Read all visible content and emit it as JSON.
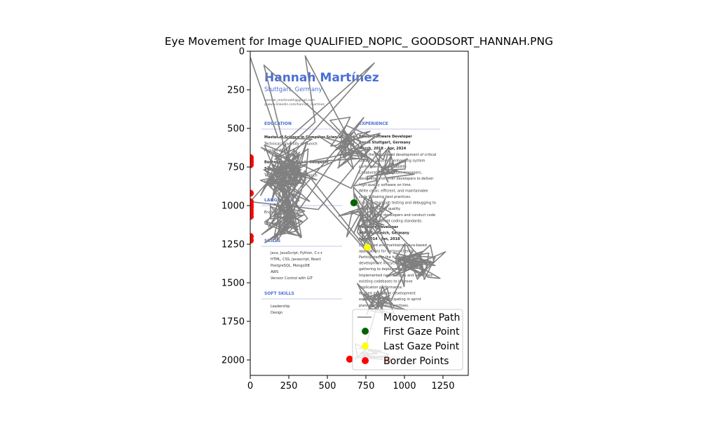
{
  "chart_data": {
    "type": "line",
    "title": "Eye Movement for Image QUALIFIED_NOPIC_ GOODSORT_HANNAH.PNG",
    "xlabel": "",
    "ylabel": "",
    "xlim": [
      0,
      1414
    ],
    "ylim": [
      2100,
      0
    ],
    "x_ticks": [
      0,
      250,
      500,
      750,
      1000,
      1250
    ],
    "y_ticks": [
      0,
      250,
      500,
      750,
      1000,
      1250,
      1500,
      1750,
      2000
    ],
    "background_image": {
      "extent_x": [
        0,
        1414
      ],
      "extent_y": [
        0,
        2000
      ],
      "name": "Hannah Martínez",
      "location": "Stuttgart, Germany",
      "email": "hannah_martinezth@gmail.com",
      "linkedin": "@www.linkedin.com/hannah_martinez",
      "sections": {
        "education": "EDUCATION",
        "experience": "EXPERIENCE",
        "languages": "LANGUAGES",
        "skills": "SKILLS",
        "soft_skills": "SOFT SKILLS"
      },
      "education_lines": [
        "Master of Science in Computer Science",
        "Technical University of Munich",
        "Munich, 2014",
        "Bachelor of Science in Computer",
        "Science",
        "Technical University of Munich",
        "Munich, 2010"
      ],
      "experience_lines": [
        "Senior Software Developer",
        "Bosch Stuttgart, Germany",
        "March, 2018 - Apr, 2024",
        "Lead the design and development of critical",
        "software solutions, enhancing system",
        "performance and reliability.",
        "Collaborate with product managers,",
        "designers, and other developers to deliver",
        "high-quality software on time.",
        "Write clean, efficient, and maintainable",
        "code following best practices.",
        "Conduct thorough testing and debugging to",
        "ensure software quality.",
        "Mentor junior developers and conduct code",
        "reviews to uphold coding standards.",
        "Software Developer",
        "SAP AG Munich, Germany",
        "Jun, 2014 - Jan, 2018",
        "Developed and maintained Java-based",
        "applications for various clients.",
        "Participated in the full software",
        "development lifecycle, from requirements",
        "gathering to deployment.",
        "Implemented new features and optimized",
        "existing codebases to improve",
        "application performance.",
        "Worked in an agile development",
        "environment, participating in sprint",
        "planning and retrospectives."
      ],
      "language_lines": [
        "English: Level C1",
        "German: Level B2"
      ],
      "skill_lines": [
        "Java, JavaScript, Python, C++",
        "HTML, CSS, Javascript, React",
        "PostgreSQL, MongoDB",
        "AWS",
        "Version Control with GIT"
      ],
      "soft_skill_lines": [
        "Leadership",
        "Design"
      ]
    },
    "series": [
      {
        "name": "Movement Path",
        "color": "#808080",
        "seed": 20240517,
        "segments": [
          {
            "n": 20,
            "cx": 560,
            "cy": 760,
            "sx": 600,
            "sy": 640
          },
          {
            "n": 100,
            "cx": 230,
            "cy": 800,
            "sx": 160,
            "sy": 220
          },
          {
            "n": 90,
            "cx": 240,
            "cy": 1080,
            "sx": 150,
            "sy": 200
          },
          {
            "n": 55,
            "cx": 650,
            "cy": 610,
            "sx": 180,
            "sy": 150
          },
          {
            "n": 35,
            "cx": 880,
            "cy": 760,
            "sx": 190,
            "sy": 160
          },
          {
            "n": 50,
            "cx": 760,
            "cy": 1070,
            "sx": 180,
            "sy": 200
          },
          {
            "n": 65,
            "cx": 1060,
            "cy": 1380,
            "sx": 200,
            "sy": 150
          },
          {
            "n": 40,
            "cx": 830,
            "cy": 1620,
            "sx": 170,
            "sy": 120
          },
          {
            "n": 20,
            "cx": 720,
            "cy": 1950,
            "sx": 150,
            "sy": 60
          }
        ],
        "fixed_points": [
          {
            "index": 0,
            "x": 0,
            "y": 40
          },
          {
            "index": 1,
            "x": 180,
            "y": 560
          },
          {
            "index": 2,
            "x": 400,
            "y": 570
          },
          {
            "index": 3,
            "x": 160,
            "y": 700
          },
          {
            "index": 4,
            "x": 420,
            "y": 460
          }
        ]
      }
    ],
    "first_gaze": {
      "name": "First Gaze Point",
      "x": 672,
      "y": 982,
      "color": "#006400"
    },
    "last_gaze": {
      "name": "Last Gaze Point",
      "x": 760,
      "y": 1270,
      "color": "#ffff00"
    },
    "border_points": {
      "name": "Border Points",
      "color": "#ff0000",
      "points": [
        {
          "x": 0,
          "y": 690
        },
        {
          "x": 0,
          "y": 705
        },
        {
          "x": 0,
          "y": 720
        },
        {
          "x": 0,
          "y": 735
        },
        {
          "x": 0,
          "y": 920
        },
        {
          "x": 0,
          "y": 975
        },
        {
          "x": 0,
          "y": 995
        },
        {
          "x": 0,
          "y": 1010
        },
        {
          "x": 0,
          "y": 1030
        },
        {
          "x": 0,
          "y": 1050
        },
        {
          "x": 0,
          "y": 1070
        },
        {
          "x": 0,
          "y": 1200
        },
        {
          "x": 0,
          "y": 1225
        },
        {
          "x": 645,
          "y": 1995
        },
        {
          "x": 890,
          "y": 1998
        }
      ]
    },
    "legend": {
      "placement": "lower-right"
    }
  }
}
